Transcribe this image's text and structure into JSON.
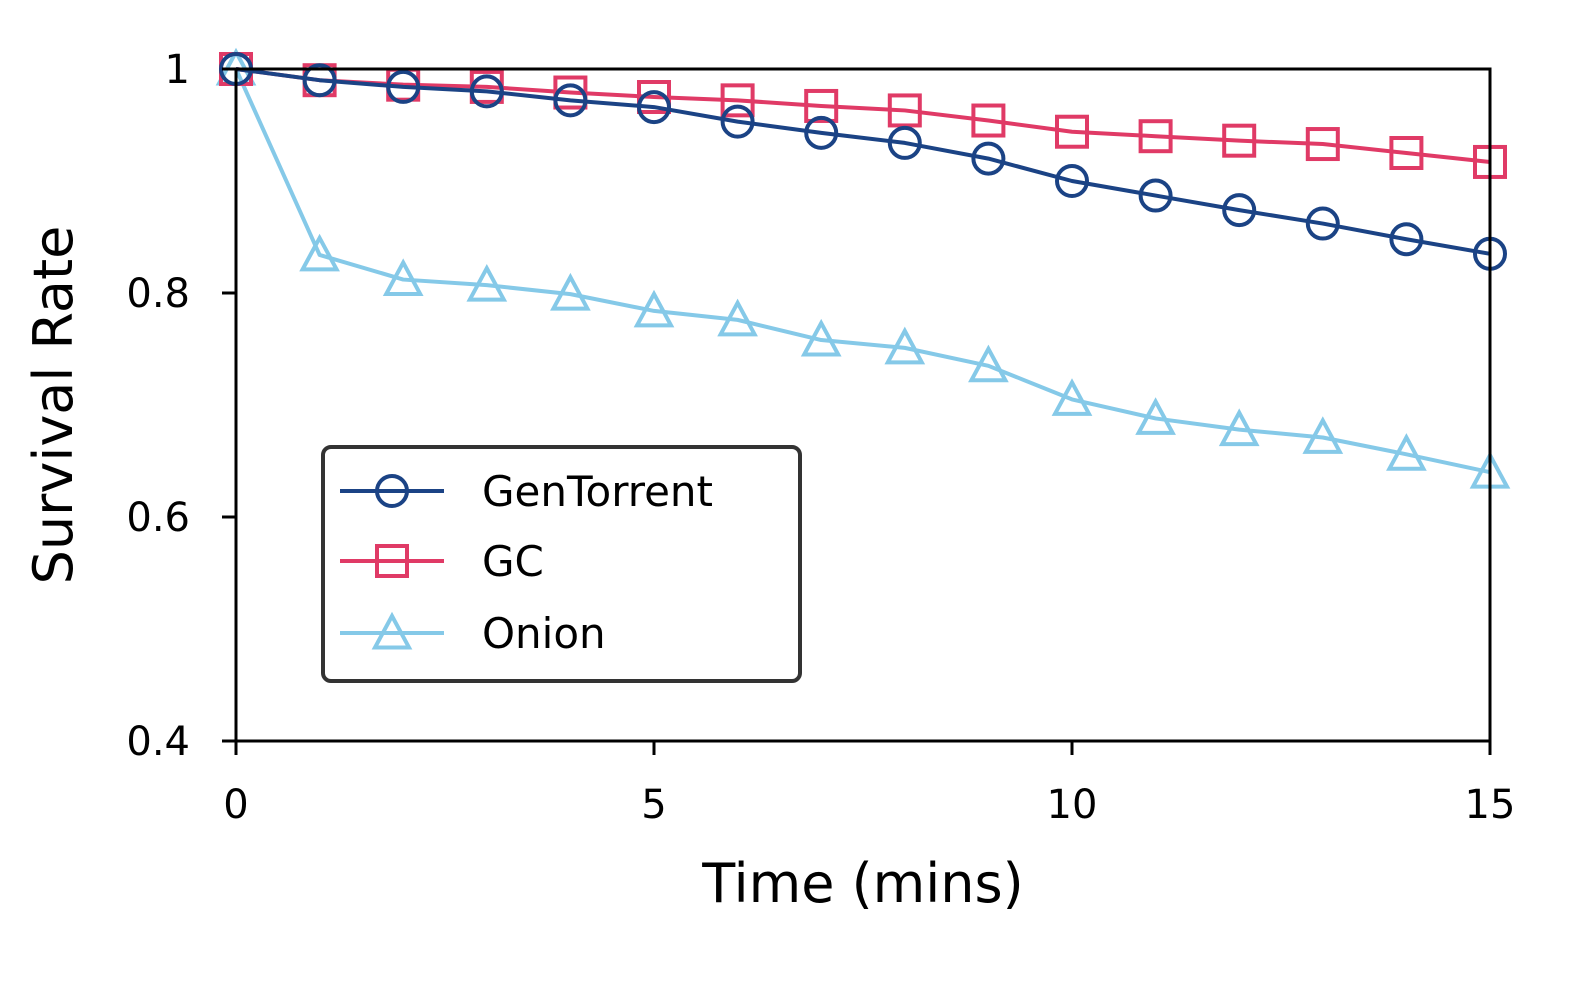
{
  "chart_data": {
    "type": "line",
    "xlabel": "Time (mins)",
    "ylabel": "Survival Rate",
    "xlim": [
      0,
      15
    ],
    "ylim": [
      0.4,
      1.0
    ],
    "xticks": [
      0,
      5,
      10,
      15
    ],
    "xtick_labels": [
      "0",
      "5",
      "10",
      "15"
    ],
    "yticks": [
      0.4,
      0.6,
      0.8,
      1.0
    ],
    "ytick_labels": [
      "0.4",
      "0.6",
      "0.8",
      "1"
    ],
    "grid": false,
    "legend_position": "lower-left",
    "x": [
      0,
      1,
      2,
      3,
      4,
      5,
      6,
      7,
      8,
      9,
      10,
      11,
      12,
      13,
      14,
      15
    ],
    "series": [
      {
        "name": "GenTorrent",
        "color": "#1b4385",
        "marker": "circle",
        "values": [
          1.0,
          0.99,
          0.984,
          0.98,
          0.972,
          0.966,
          0.953,
          0.943,
          0.934,
          0.92,
          0.9,
          0.887,
          0.874,
          0.862,
          0.848,
          0.835
        ]
      },
      {
        "name": "GC",
        "color": "#e03a66",
        "marker": "square",
        "values": [
          1.0,
          0.99,
          0.986,
          0.984,
          0.979,
          0.975,
          0.972,
          0.967,
          0.963,
          0.954,
          0.944,
          0.94,
          0.936,
          0.933,
          0.925,
          0.917
        ]
      },
      {
        "name": "Onion",
        "color": "#85c9e8",
        "marker": "triangle",
        "values": [
          1.0,
          0.834,
          0.812,
          0.807,
          0.799,
          0.784,
          0.776,
          0.758,
          0.751,
          0.735,
          0.705,
          0.688,
          0.678,
          0.671,
          0.656,
          0.64
        ]
      }
    ]
  }
}
